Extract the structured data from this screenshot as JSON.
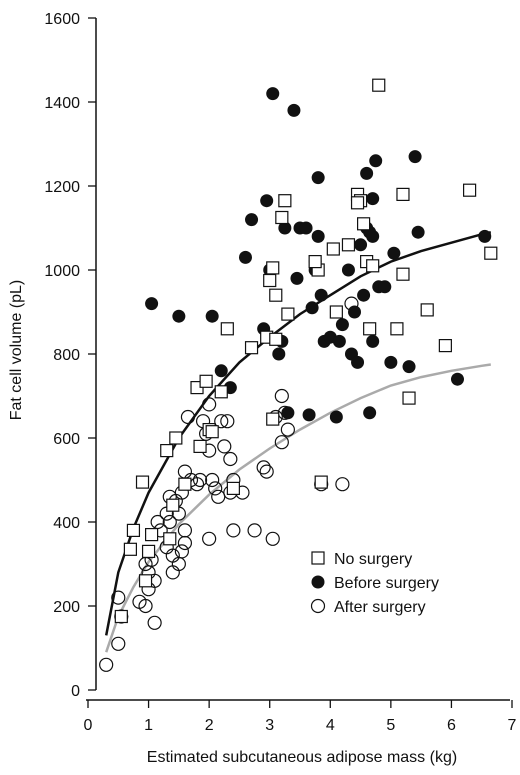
{
  "chart_data": {
    "type": "scatter",
    "title": "",
    "xlabel": "Estimated subcutaneous adipose mass (kg)",
    "ylabel": "Fat cell volume (pL)",
    "xlim": [
      0,
      7
    ],
    "ylim": [
      0,
      1600
    ],
    "xticks": [
      "0",
      "1",
      "2",
      "3",
      "4",
      "5",
      "6",
      "7"
    ],
    "yticks": [
      "0",
      "200",
      "400",
      "600",
      "800",
      "1000",
      "1200",
      "1400",
      "1600"
    ],
    "grid": false,
    "legend_position": "bottom-right",
    "series": [
      {
        "name": "No surgery",
        "marker": "open-square",
        "color": "#000000",
        "points": [
          [
            0.55,
            175
          ],
          [
            0.75,
            380
          ],
          [
            0.7,
            335
          ],
          [
            0.9,
            495
          ],
          [
            0.95,
            260
          ],
          [
            1.0,
            330
          ],
          [
            1.05,
            370
          ],
          [
            1.3,
            570
          ],
          [
            1.4,
            440
          ],
          [
            1.45,
            600
          ],
          [
            1.35,
            360
          ],
          [
            1.8,
            720
          ],
          [
            1.95,
            735
          ],
          [
            1.85,
            580
          ],
          [
            1.6,
            490
          ],
          [
            2.0,
            620
          ],
          [
            2.05,
            615
          ],
          [
            2.2,
            710
          ],
          [
            2.3,
            860
          ],
          [
            2.7,
            815
          ],
          [
            2.95,
            840
          ],
          [
            3.0,
            975
          ],
          [
            3.05,
            1005
          ],
          [
            3.1,
            940
          ],
          [
            3.2,
            1125
          ],
          [
            3.25,
            1165
          ],
          [
            3.3,
            895
          ],
          [
            3.1,
            835
          ],
          [
            3.05,
            645
          ],
          [
            3.8,
            1000
          ],
          [
            3.75,
            1020
          ],
          [
            3.85,
            495
          ],
          [
            4.05,
            1050
          ],
          [
            4.3,
            1060
          ],
          [
            4.45,
            1180
          ],
          [
            4.5,
            1165
          ],
          [
            4.45,
            1160
          ],
          [
            4.55,
            1110
          ],
          [
            4.6,
            1020
          ],
          [
            4.7,
            1010
          ],
          [
            4.65,
            860
          ],
          [
            4.8,
            1440
          ],
          [
            5.2,
            990
          ],
          [
            5.2,
            1180
          ],
          [
            5.1,
            860
          ],
          [
            5.3,
            695
          ],
          [
            5.6,
            905
          ],
          [
            5.9,
            820
          ],
          [
            6.3,
            1190
          ],
          [
            6.65,
            1040
          ],
          [
            4.1,
            900
          ],
          [
            2.4,
            480
          ]
        ]
      },
      {
        "name": "Before surgery",
        "marker": "filled-circle",
        "color": "#000000",
        "points": [
          [
            1.05,
            920
          ],
          [
            1.5,
            890
          ],
          [
            2.05,
            890
          ],
          [
            2.2,
            760
          ],
          [
            2.35,
            720
          ],
          [
            2.6,
            1030
          ],
          [
            2.7,
            1120
          ],
          [
            2.95,
            1165
          ],
          [
            3.0,
            1000
          ],
          [
            3.05,
            1420
          ],
          [
            3.15,
            800
          ],
          [
            3.25,
            1100
          ],
          [
            3.2,
            830
          ],
          [
            3.4,
            1380
          ],
          [
            3.45,
            980
          ],
          [
            3.5,
            1100
          ],
          [
            3.6,
            1100
          ],
          [
            3.65,
            655
          ],
          [
            3.7,
            910
          ],
          [
            3.75,
            1000
          ],
          [
            3.75,
            1020
          ],
          [
            3.8,
            1220
          ],
          [
            3.8,
            1080
          ],
          [
            3.9,
            830
          ],
          [
            4.0,
            840
          ],
          [
            4.1,
            650
          ],
          [
            4.15,
            830
          ],
          [
            4.2,
            870
          ],
          [
            4.3,
            1000
          ],
          [
            4.35,
            800
          ],
          [
            4.45,
            780
          ],
          [
            4.5,
            1060
          ],
          [
            4.55,
            940
          ],
          [
            4.6,
            1230
          ],
          [
            4.6,
            1100
          ],
          [
            4.65,
            1090
          ],
          [
            4.7,
            1080
          ],
          [
            4.75,
            1260
          ],
          [
            4.7,
            1170
          ],
          [
            4.7,
            830
          ],
          [
            4.8,
            960
          ],
          [
            4.9,
            960
          ],
          [
            5.0,
            780
          ],
          [
            5.05,
            1040
          ],
          [
            5.3,
            770
          ],
          [
            5.4,
            1270
          ],
          [
            5.45,
            1090
          ],
          [
            6.1,
            740
          ],
          [
            6.55,
            1080
          ],
          [
            3.85,
            940
          ],
          [
            4.4,
            900
          ],
          [
            4.65,
            660
          ],
          [
            2.9,
            860
          ],
          [
            3.3,
            660
          ]
        ]
      },
      {
        "name": "After surgery",
        "marker": "open-circle",
        "color": "#000000",
        "points": [
          [
            0.3,
            60
          ],
          [
            0.5,
            110
          ],
          [
            0.5,
            220
          ],
          [
            0.55,
            175
          ],
          [
            0.85,
            210
          ],
          [
            0.95,
            200
          ],
          [
            0.95,
            300
          ],
          [
            1.0,
            280
          ],
          [
            1.05,
            310
          ],
          [
            1.1,
            160
          ],
          [
            1.1,
            260
          ],
          [
            1.15,
            400
          ],
          [
            1.2,
            380
          ],
          [
            1.3,
            420
          ],
          [
            1.35,
            460
          ],
          [
            1.35,
            400
          ],
          [
            1.4,
            280
          ],
          [
            1.4,
            320
          ],
          [
            1.5,
            300
          ],
          [
            1.5,
            420
          ],
          [
            1.55,
            330
          ],
          [
            1.55,
            470
          ],
          [
            1.6,
            380
          ],
          [
            1.6,
            350
          ],
          [
            1.6,
            520
          ],
          [
            1.7,
            500
          ],
          [
            1.8,
            490
          ],
          [
            1.85,
            500
          ],
          [
            1.9,
            640
          ],
          [
            1.95,
            610
          ],
          [
            2.0,
            680
          ],
          [
            2.0,
            570
          ],
          [
            2.05,
            500
          ],
          [
            2.1,
            480
          ],
          [
            2.15,
            460
          ],
          [
            2.2,
            640
          ],
          [
            2.25,
            580
          ],
          [
            2.3,
            640
          ],
          [
            2.35,
            470
          ],
          [
            2.35,
            550
          ],
          [
            2.4,
            500
          ],
          [
            2.4,
            380
          ],
          [
            2.55,
            470
          ],
          [
            2.75,
            380
          ],
          [
            2.9,
            530
          ],
          [
            2.95,
            520
          ],
          [
            3.05,
            360
          ],
          [
            3.2,
            700
          ],
          [
            3.25,
            660
          ],
          [
            3.3,
            620
          ],
          [
            3.2,
            590
          ],
          [
            3.85,
            490
          ],
          [
            4.2,
            490
          ],
          [
            4.35,
            920
          ],
          [
            1.65,
            650
          ],
          [
            1.3,
            340
          ],
          [
            2.0,
            360
          ],
          [
            1.45,
            450
          ],
          [
            1.0,
            240
          ],
          [
            3.1,
            650
          ]
        ]
      }
    ],
    "curves": [
      {
        "series": "Before surgery",
        "color": "#111111",
        "points": [
          [
            0.3,
            130
          ],
          [
            0.5,
            280
          ],
          [
            0.75,
            385
          ],
          [
            1.0,
            470
          ],
          [
            1.5,
            600
          ],
          [
            2.0,
            700
          ],
          [
            2.5,
            780
          ],
          [
            3.0,
            840
          ],
          [
            3.5,
            895
          ],
          [
            4.0,
            940
          ],
          [
            4.5,
            985
          ],
          [
            5.0,
            1020
          ],
          [
            5.5,
            1045
          ],
          [
            6.0,
            1065
          ],
          [
            6.5,
            1085
          ],
          [
            6.65,
            1090
          ]
        ]
      },
      {
        "series": "After surgery",
        "color": "#aaaaaa",
        "points": [
          [
            0.3,
            90
          ],
          [
            0.5,
            175
          ],
          [
            0.75,
            245
          ],
          [
            1.0,
            305
          ],
          [
            1.5,
            395
          ],
          [
            2.0,
            465
          ],
          [
            2.5,
            525
          ],
          [
            3.0,
            575
          ],
          [
            3.5,
            620
          ],
          [
            4.0,
            660
          ],
          [
            4.5,
            695
          ],
          [
            5.0,
            725
          ],
          [
            5.5,
            745
          ],
          [
            6.0,
            760
          ],
          [
            6.5,
            772
          ],
          [
            6.65,
            775
          ]
        ]
      }
    ],
    "legend": {
      "entries": [
        {
          "label": "No surgery",
          "marker": "open-square"
        },
        {
          "label": "Before surgery",
          "marker": "filled-circle"
        },
        {
          "label": "After surgery",
          "marker": "open-circle"
        }
      ]
    }
  }
}
